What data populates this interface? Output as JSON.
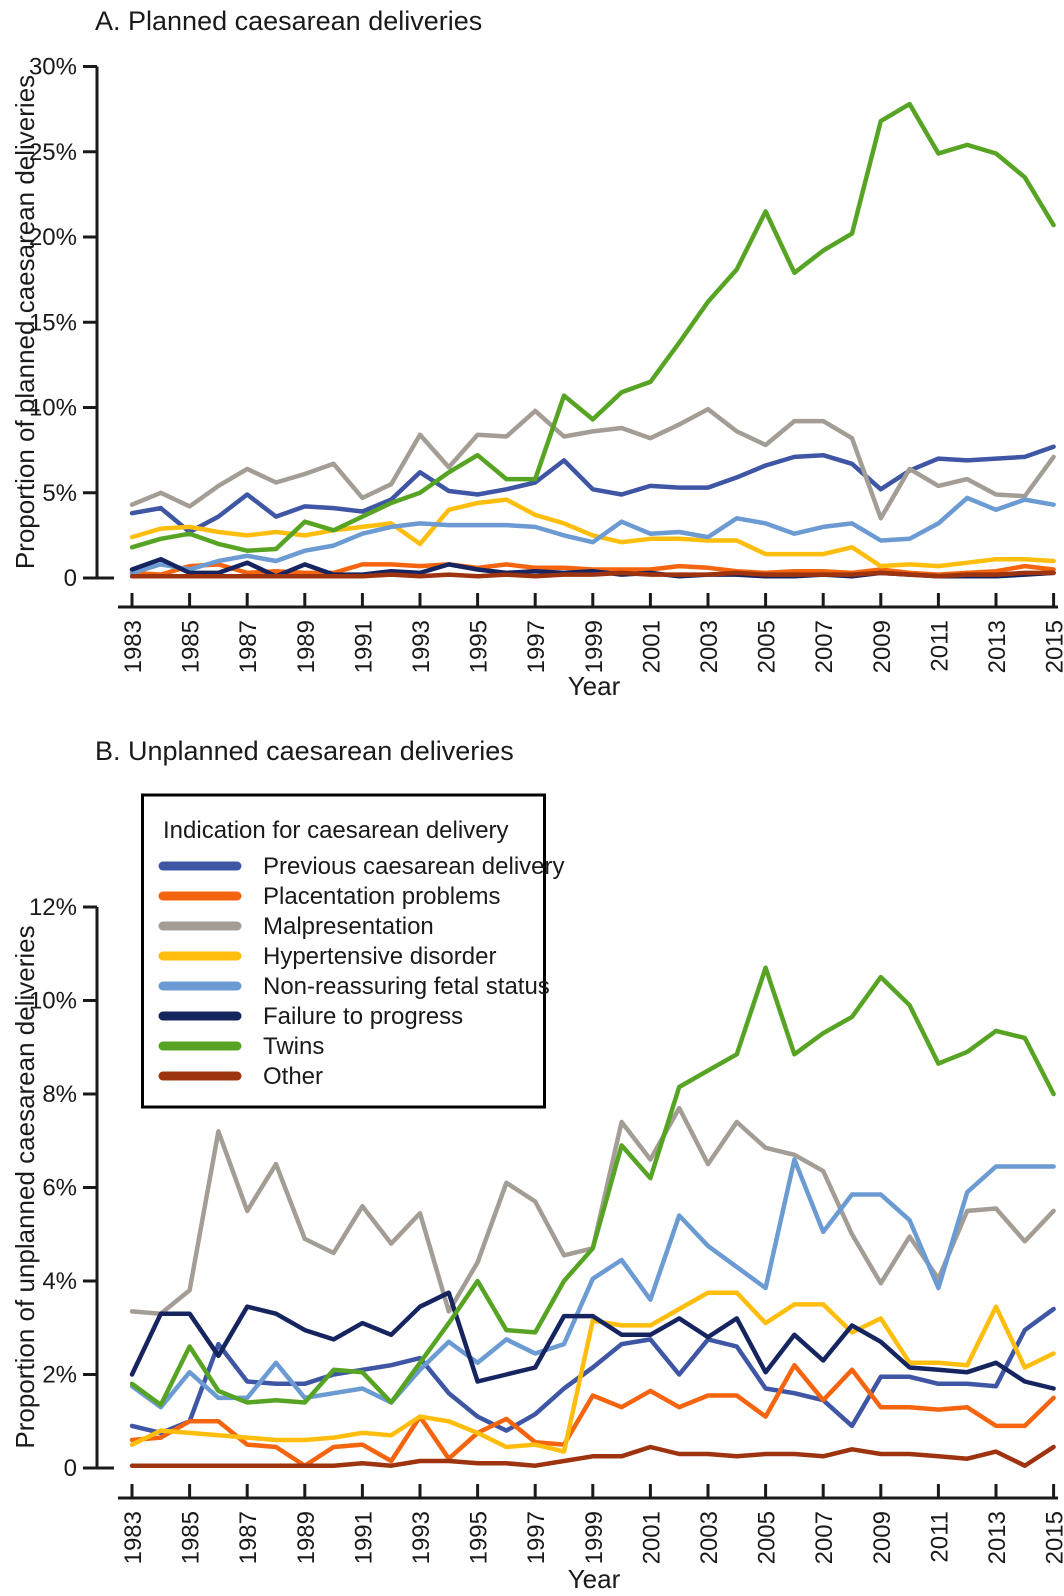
{
  "figure": {
    "background": "#ffffff",
    "text_color": "#1a1a1a"
  },
  "legend": {
    "title": "Indication for caesarean delivery",
    "position": "top-left-of-panel-B",
    "border_color": "#000000"
  },
  "chart_data": [
    {
      "type": "line",
      "panel": "A",
      "title": "A. Planned caesarean deliveries",
      "xlabel": "Year",
      "ylabel": "Proportion of planned caesarean deliveries",
      "xlim": [
        1983,
        2015
      ],
      "xtick_step": 2,
      "ylim": [
        0,
        30
      ],
      "ytick_step": 5,
      "ytick_suffix": "%",
      "grid": false,
      "x": [
        1983,
        1984,
        1985,
        1986,
        1987,
        1988,
        1989,
        1990,
        1991,
        1992,
        1993,
        1994,
        1995,
        1996,
        1997,
        1998,
        1999,
        2000,
        2001,
        2002,
        2003,
        2004,
        2005,
        2006,
        2007,
        2008,
        2009,
        2010,
        2011,
        2012,
        2013,
        2014,
        2015
      ],
      "series": [
        {
          "name": "Previous caesarean delivery",
          "color": "#3F56A5",
          "values": [
            3.8,
            4.1,
            2.7,
            3.6,
            4.9,
            3.6,
            4.2,
            4.1,
            3.9,
            4.6,
            6.2,
            5.1,
            4.9,
            5.2,
            5.6,
            6.9,
            5.2,
            4.9,
            5.4,
            5.3,
            5.3,
            5.9,
            6.6,
            7.1,
            7.2,
            6.7,
            5.2,
            6.3,
            7.0,
            6.9,
            7.0,
            7.1,
            7.7
          ]
        },
        {
          "name": "Placentation problems",
          "color": "#F5650F",
          "values": [
            0.3,
            0.2,
            0.7,
            0.8,
            0.3,
            0.4,
            0.3,
            0.3,
            0.8,
            0.8,
            0.7,
            0.8,
            0.6,
            0.8,
            0.6,
            0.6,
            0.5,
            0.5,
            0.5,
            0.7,
            0.6,
            0.4,
            0.3,
            0.4,
            0.4,
            0.3,
            0.5,
            0.3,
            0.2,
            0.3,
            0.4,
            0.7,
            0.5
          ]
        },
        {
          "name": "Malpresentation",
          "color": "#A49D95",
          "values": [
            4.3,
            5.0,
            4.2,
            5.4,
            6.4,
            5.6,
            6.1,
            6.7,
            4.7,
            5.5,
            8.4,
            6.5,
            8.4,
            8.3,
            9.8,
            8.3,
            8.6,
            8.8,
            8.2,
            9.0,
            9.9,
            8.6,
            7.8,
            9.2,
            9.2,
            8.2,
            3.5,
            6.4,
            5.4,
            5.8,
            4.9,
            4.8,
            7.1
          ]
        },
        {
          "name": "Hypertensive disorder",
          "color": "#FFBE0D",
          "values": [
            2.4,
            2.9,
            3.0,
            2.7,
            2.5,
            2.7,
            2.5,
            2.8,
            3.0,
            3.2,
            2.0,
            4.0,
            4.4,
            4.6,
            3.7,
            3.2,
            2.5,
            2.1,
            2.3,
            2.3,
            2.2,
            2.2,
            1.4,
            1.4,
            1.4,
            1.8,
            0.7,
            0.8,
            0.7,
            0.9,
            1.1,
            1.1,
            1.0
          ]
        },
        {
          "name": "Non-reassuring fetal status",
          "color": "#6B9BD2",
          "values": [
            0.3,
            0.8,
            0.5,
            1.0,
            1.3,
            1.0,
            1.6,
            1.9,
            2.6,
            3.0,
            3.2,
            3.1,
            3.1,
            3.1,
            3.0,
            2.5,
            2.1,
            3.3,
            2.6,
            2.7,
            2.4,
            3.5,
            3.2,
            2.6,
            3.0,
            3.2,
            2.2,
            2.3,
            3.2,
            4.7,
            4.0,
            4.6,
            4.3
          ]
        },
        {
          "name": "Failure to progress",
          "color": "#16245F",
          "values": [
            0.5,
            1.1,
            0.3,
            0.3,
            0.9,
            0.1,
            0.8,
            0.2,
            0.2,
            0.4,
            0.3,
            0.8,
            0.5,
            0.3,
            0.4,
            0.3,
            0.4,
            0.2,
            0.3,
            0.1,
            0.2,
            0.2,
            0.1,
            0.1,
            0.2,
            0.1,
            0.3,
            0.2,
            0.1,
            0.1,
            0.1,
            0.2,
            0.3
          ]
        },
        {
          "name": "Twins",
          "color": "#57A424",
          "values": [
            1.8,
            2.3,
            2.6,
            2.0,
            1.6,
            1.7,
            3.3,
            2.8,
            3.6,
            4.4,
            5.0,
            6.2,
            7.2,
            5.8,
            5.8,
            10.7,
            9.3,
            10.9,
            11.5,
            13.8,
            16.2,
            18.1,
            21.5,
            17.9,
            19.2,
            20.2,
            26.8,
            27.8,
            24.9,
            25.4,
            24.9,
            23.5,
            20.7
          ]
        },
        {
          "name": "Other",
          "color": "#9E330F",
          "values": [
            0.1,
            0.1,
            0.1,
            0.1,
            0.1,
            0.1,
            0.1,
            0.1,
            0.1,
            0.2,
            0.1,
            0.2,
            0.1,
            0.2,
            0.1,
            0.2,
            0.2,
            0.3,
            0.2,
            0.2,
            0.2,
            0.3,
            0.2,
            0.2,
            0.2,
            0.2,
            0.3,
            0.2,
            0.1,
            0.2,
            0.2,
            0.3,
            0.3
          ]
        }
      ]
    },
    {
      "type": "line",
      "panel": "B",
      "title": "B. Unplanned caesarean deliveries",
      "xlabel": "Year",
      "ylabel": "Proportion of unplanned caesarean deliveries",
      "xlim": [
        1983,
        2015
      ],
      "xtick_step": 2,
      "ylim": [
        0,
        12
      ],
      "ytick_step": 2,
      "ytick_suffix": "%",
      "grid": false,
      "x": [
        1983,
        1984,
        1985,
        1986,
        1987,
        1988,
        1989,
        1990,
        1991,
        1992,
        1993,
        1994,
        1995,
        1996,
        1997,
        1998,
        1999,
        2000,
        2001,
        2002,
        2003,
        2004,
        2005,
        2006,
        2007,
        2008,
        2009,
        2010,
        2011,
        2012,
        2013,
        2014,
        2015
      ],
      "series": [
        {
          "name": "Previous caesarean delivery",
          "color": "#3F56A5",
          "values": [
            0.9,
            0.75,
            1.0,
            2.65,
            1.85,
            1.8,
            1.8,
            2.0,
            2.1,
            2.2,
            2.35,
            1.6,
            1.1,
            0.8,
            1.15,
            1.7,
            2.15,
            2.65,
            2.75,
            2.0,
            2.75,
            2.6,
            1.7,
            1.6,
            1.45,
            0.9,
            1.95,
            1.95,
            1.8,
            1.8,
            1.75,
            2.95,
            3.4
          ]
        },
        {
          "name": "Placentation problems",
          "color": "#F5650F",
          "values": [
            0.6,
            0.65,
            1.0,
            1.0,
            0.5,
            0.45,
            0.05,
            0.45,
            0.5,
            0.15,
            1.1,
            0.2,
            0.75,
            1.05,
            0.55,
            0.5,
            1.55,
            1.3,
            1.65,
            1.3,
            1.55,
            1.55,
            1.1,
            2.2,
            1.45,
            2.1,
            1.3,
            1.3,
            1.25,
            1.3,
            0.9,
            0.9,
            1.5
          ]
        },
        {
          "name": "Malpresentation",
          "color": "#A49D95",
          "values": [
            3.35,
            3.3,
            3.8,
            7.2,
            5.5,
            6.5,
            4.9,
            4.6,
            5.6,
            4.8,
            5.45,
            3.35,
            4.4,
            6.1,
            5.7,
            4.55,
            4.7,
            7.4,
            6.6,
            7.7,
            6.5,
            7.4,
            6.85,
            6.7,
            6.35,
            5.0,
            3.95,
            4.95,
            4.05,
            5.5,
            5.55,
            4.85,
            5.5
          ]
        },
        {
          "name": "Hypertensive disorder",
          "color": "#FFBE0D",
          "values": [
            0.5,
            0.8,
            0.75,
            0.7,
            0.65,
            0.6,
            0.6,
            0.65,
            0.75,
            0.7,
            1.1,
            1.0,
            0.75,
            0.45,
            0.5,
            0.35,
            3.15,
            3.05,
            3.05,
            3.4,
            3.75,
            3.75,
            3.1,
            3.5,
            3.5,
            2.9,
            3.2,
            2.25,
            2.25,
            2.2,
            3.45,
            2.15,
            2.45
          ]
        },
        {
          "name": "Non-reassuring fetal status",
          "color": "#6B9BD2",
          "values": [
            1.75,
            1.3,
            2.05,
            1.5,
            1.5,
            2.25,
            1.5,
            1.6,
            1.7,
            1.4,
            2.1,
            2.7,
            2.25,
            2.75,
            2.45,
            2.65,
            4.05,
            4.45,
            3.6,
            5.4,
            4.75,
            4.3,
            3.85,
            6.6,
            5.05,
            5.85,
            5.85,
            5.3,
            3.85,
            5.9,
            6.45,
            6.45,
            6.45
          ]
        },
        {
          "name": "Failure to progress",
          "color": "#16245F",
          "values": [
            2.0,
            3.3,
            3.3,
            2.4,
            3.45,
            3.3,
            2.95,
            2.75,
            3.1,
            2.85,
            3.45,
            3.75,
            1.85,
            2.0,
            2.15,
            3.25,
            3.25,
            2.85,
            2.85,
            3.2,
            2.8,
            3.2,
            2.05,
            2.85,
            2.3,
            3.05,
            2.7,
            2.15,
            2.1,
            2.05,
            2.25,
            1.85,
            1.7
          ]
        },
        {
          "name": "Twins",
          "color": "#57A424",
          "values": [
            1.8,
            1.35,
            2.6,
            1.65,
            1.4,
            1.45,
            1.4,
            2.1,
            2.05,
            1.4,
            2.25,
            3.1,
            4.0,
            2.95,
            2.9,
            4.0,
            4.7,
            6.9,
            6.2,
            8.15,
            8.5,
            8.85,
            10.7,
            8.85,
            9.3,
            9.65,
            10.5,
            9.9,
            8.65,
            8.9,
            9.35,
            9.2,
            8.0
          ]
        },
        {
          "name": "Other",
          "color": "#9E330F",
          "values": [
            0.05,
            0.05,
            0.05,
            0.05,
            0.05,
            0.05,
            0.05,
            0.05,
            0.1,
            0.05,
            0.15,
            0.15,
            0.1,
            0.1,
            0.05,
            0.15,
            0.25,
            0.25,
            0.45,
            0.3,
            0.3,
            0.25,
            0.3,
            0.3,
            0.25,
            0.4,
            0.3,
            0.3,
            0.25,
            0.2,
            0.35,
            0.05,
            0.45
          ]
        }
      ]
    }
  ]
}
